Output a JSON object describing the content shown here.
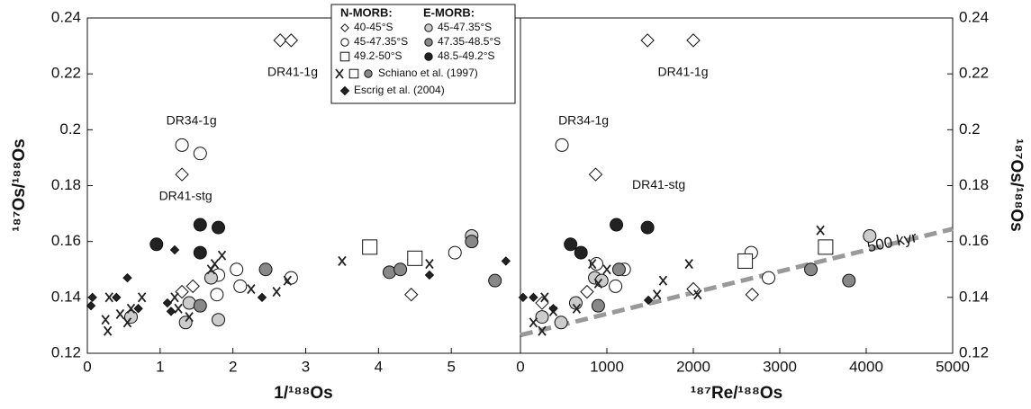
{
  "chart_data": [
    {
      "type": "scatter",
      "x_label": "1/¹⁸⁸Os",
      "y_label": "¹⁸⁷Os/¹⁸⁸Os",
      "xlim": [
        0,
        5.95
      ],
      "xticks": [
        0,
        1,
        2,
        3,
        4,
        5
      ],
      "ylim": [
        0.12,
        0.24
      ],
      "yticks": [
        0.12,
        0.14,
        0.16,
        0.18,
        0.2,
        0.22,
        0.24
      ],
      "legend_groups": [
        "N-MORB:",
        "E-MORB:"
      ],
      "annotations": [
        "DR41-1g",
        "DR34-1g",
        "DR41-stg"
      ],
      "series": [
        {
          "name": "40-45°S",
          "marker": "diamond",
          "color": "#ffffff",
          "x": [
            2.65,
            2.8,
            1.3,
            1.3,
            1.45,
            4.45
          ],
          "y": [
            0.232,
            0.232,
            0.184,
            0.142,
            0.144,
            0.141
          ]
        },
        {
          "name": "45-47.35°S",
          "marker": "circle",
          "color": "#ffffff",
          "x": [
            1.3,
            1.55,
            1.8,
            1.78,
            2.05,
            2.1,
            2.8,
            5.05
          ],
          "y": [
            0.1945,
            0.1915,
            0.148,
            0.141,
            0.15,
            0.144,
            0.147,
            0.156
          ]
        },
        {
          "name": "49.2-50°S",
          "marker": "square",
          "color": "#ffffff",
          "x": [
            3.88,
            4.5
          ],
          "y": [
            0.158,
            0.154
          ]
        },
        {
          "name": "45-47.35°S",
          "marker": "circle",
          "color": "#cccccc",
          "x": [
            0.6,
            1.35,
            1.8,
            1.4,
            1.7,
            5.28
          ],
          "y": [
            0.133,
            0.131,
            0.132,
            0.138,
            0.147,
            0.162
          ]
        },
        {
          "name": "47.35-48.5°S",
          "marker": "circle",
          "color": "#888888",
          "x": [
            1.55,
            2.45,
            4.15,
            4.3,
            5.28,
            5.6
          ],
          "y": [
            0.137,
            0.15,
            0.149,
            0.15,
            0.16,
            0.146
          ]
        },
        {
          "name": "48.5-49.2°S",
          "marker": "circle",
          "color": "#222222",
          "x": [
            0.95,
            1.55,
            1.55,
            1.8
          ],
          "y": [
            0.159,
            0.166,
            0.156,
            0.165
          ]
        },
        {
          "name": "Schiano et al. (1997)",
          "marker": "x",
          "color": "#222222",
          "x": [
            0.25,
            0.28,
            0.3,
            0.45,
            0.55,
            0.6,
            0.75,
            1.2,
            1.25,
            1.4,
            1.7,
            1.75,
            1.85,
            2.25,
            2.6,
            2.75,
            3.5,
            4.7
          ],
          "y": [
            0.132,
            0.128,
            0.14,
            0.134,
            0.131,
            0.136,
            0.14,
            0.14,
            0.136,
            0.133,
            0.15,
            0.152,
            0.155,
            0.143,
            0.142,
            0.146,
            0.153,
            0.152
          ]
        },
        {
          "name": "Escrig et al. (2004)",
          "marker": "dot-diamond",
          "color": "#222222",
          "x": [
            0.05,
            0.07,
            0.4,
            0.55,
            0.7,
            1.1,
            1.15,
            1.2,
            2.4,
            4.7,
            5.75
          ],
          "y": [
            0.137,
            0.14,
            0.14,
            0.147,
            0.136,
            0.138,
            0.135,
            0.157,
            0.14,
            0.148,
            0.153
          ]
        }
      ]
    },
    {
      "type": "scatter",
      "x_label": "¹⁸⁷Re/¹⁸⁸Os",
      "y_label": "¹⁸⁷Os/¹⁸⁸Os",
      "xlim": [
        0,
        5000
      ],
      "xticks": [
        0,
        1000,
        2000,
        3000,
        4000,
        5000
      ],
      "ylim": [
        0.12,
        0.24
      ],
      "yticks": [
        0.12,
        0.14,
        0.16,
        0.18,
        0.2,
        0.22,
        0.24
      ],
      "annotations": [
        "DR41-1g",
        "DR34-1g",
        "DR41-stg"
      ],
      "isochron": {
        "label": "500 kyr",
        "x": [
          0,
          5000
        ],
        "y": [
          0.1265,
          0.1645
        ],
        "color": "#999999"
      },
      "series": [
        {
          "name": "40-45°S",
          "marker": "diamond",
          "color": "#ffffff",
          "x": [
            1470,
            2000,
            870,
            770,
            2000,
            2680,
            250
          ],
          "y": [
            0.232,
            0.232,
            0.184,
            0.142,
            0.143,
            0.141,
            0.138
          ]
        },
        {
          "name": "45-47.35°S",
          "marker": "circle",
          "color": "#ffffff",
          "x": [
            480,
            1100,
            1200,
            2670,
            2870,
            880
          ],
          "y": [
            0.1945,
            0.144,
            0.15,
            0.156,
            0.147,
            0.152
          ]
        },
        {
          "name": "49.2-50°S",
          "marker": "square",
          "color": "#ffffff",
          "x": [
            3530,
            2600
          ],
          "y": [
            0.158,
            0.153
          ]
        },
        {
          "name": "45-47.35°S",
          "marker": "circle",
          "color": "#cccccc",
          "x": [
            250,
            470,
            640,
            860,
            940,
            4040
          ],
          "y": [
            0.133,
            0.131,
            0.138,
            0.147,
            0.146,
            0.162
          ]
        },
        {
          "name": "47.35-48.5°S",
          "marker": "circle",
          "color": "#888888",
          "x": [
            900,
            1140,
            3360,
            3800
          ],
          "y": [
            0.137,
            0.15,
            0.15,
            0.146
          ]
        },
        {
          "name": "48.5-49.2°S",
          "marker": "circle",
          "color": "#222222",
          "x": [
            580,
            700,
            1110,
            1470
          ],
          "y": [
            0.159,
            0.156,
            0.166,
            0.165
          ]
        },
        {
          "name": "Schiano et al. (1997)",
          "marker": "x",
          "color": "#222222",
          "x": [
            150,
            250,
            280,
            380,
            650,
            830,
            900,
            1000,
            1580,
            1650,
            1950,
            2050,
            3470
          ],
          "y": [
            0.131,
            0.128,
            0.14,
            0.135,
            0.136,
            0.152,
            0.145,
            0.15,
            0.141,
            0.146,
            0.152,
            0.141,
            0.164
          ]
        },
        {
          "name": "Escrig et al. (2004)",
          "marker": "dot-diamond",
          "color": "#222222",
          "x": [
            30,
            150,
            380,
            1480
          ],
          "y": [
            0.14,
            0.14,
            0.136,
            0.139
          ]
        }
      ]
    }
  ]
}
